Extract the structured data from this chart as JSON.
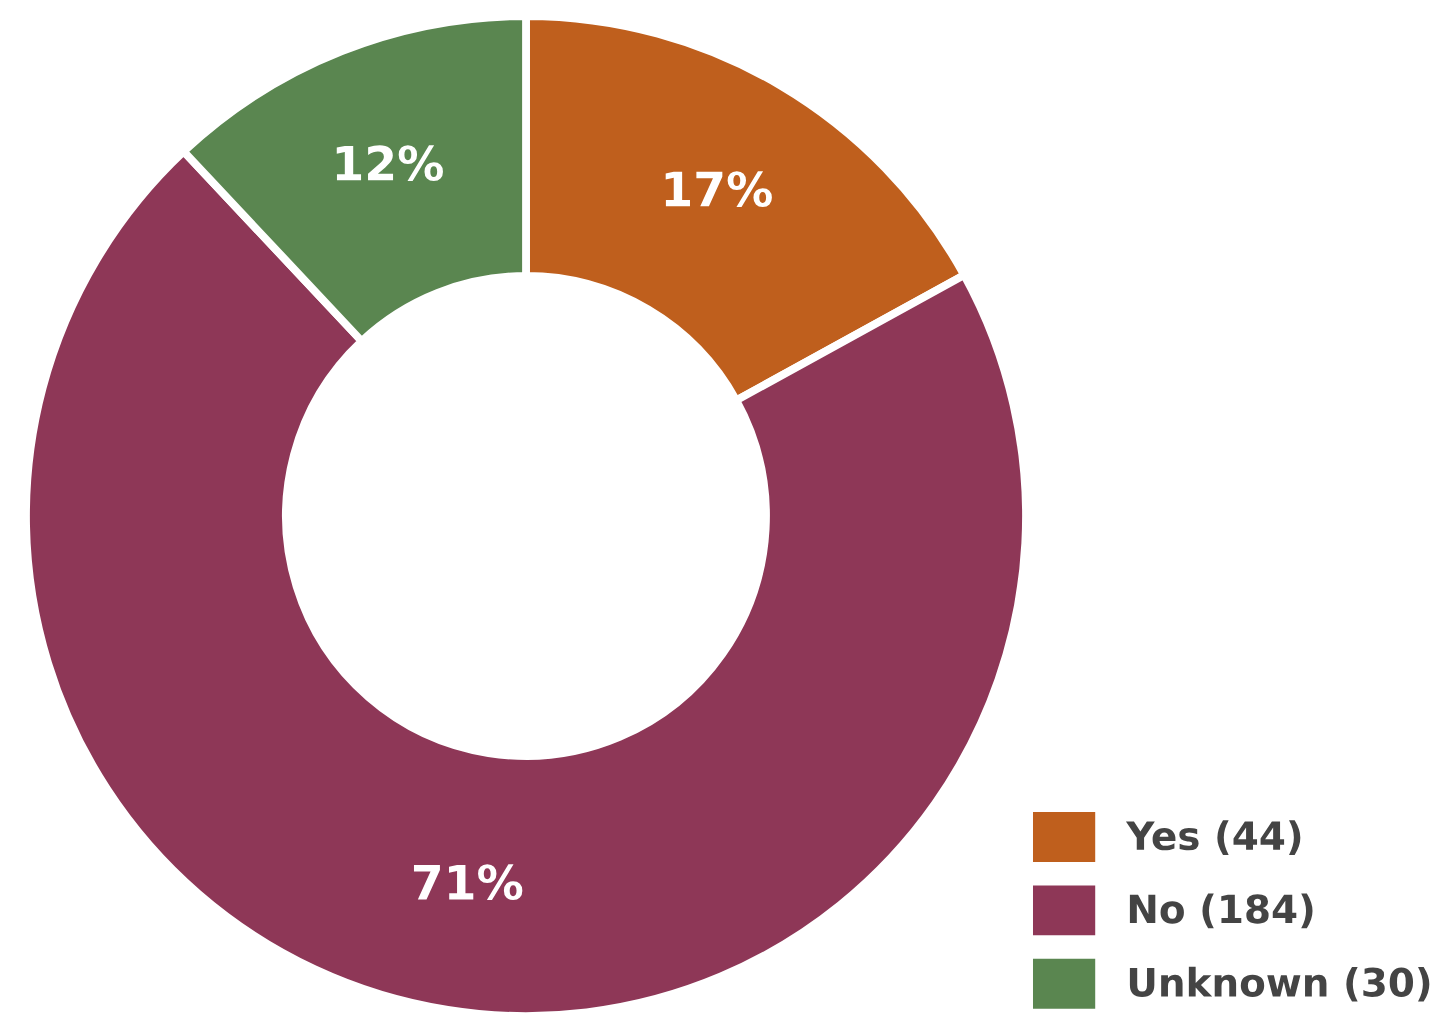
{
  "chart_data": {
    "type": "donut",
    "categories": [
      "Yes (44)",
      "No (184)",
      "Unknown (30)"
    ],
    "values": [
      17,
      71,
      12
    ],
    "colors": [
      "#bf5f1d",
      "#8e3757",
      "#5a8650"
    ],
    "value_labels": [
      "17%",
      "71%",
      "12%"
    ],
    "legend": "bottom right"
  }
}
